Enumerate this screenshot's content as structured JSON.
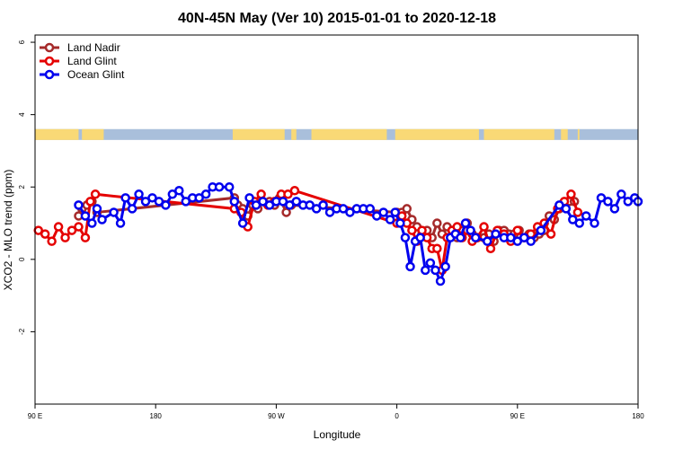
{
  "chart_data": {
    "type": "line",
    "title": "40N-45N May (Ver 10)   2015-01-01 to 2020-12-18",
    "xlabel": "Longitude",
    "ylabel": "XCO2 - MLO trend (ppm)",
    "xlim": [
      90,
      450
    ],
    "ylim": [
      -4.0,
      6.2
    ],
    "x_ticks": [
      {
        "value": 90,
        "label": "90 E"
      },
      {
        "value": 162,
        "label": "180"
      },
      {
        "value": 234,
        "label": "90 W"
      },
      {
        "value": 306,
        "label": "0"
      },
      {
        "value": 378,
        "label": "90 E"
      },
      {
        "value": 450,
        "label": "180"
      }
    ],
    "y_ticks": [
      {
        "value": -2,
        "label": "-2"
      },
      {
        "value": 0,
        "label": "0"
      },
      {
        "value": 2,
        "label": "2"
      },
      {
        "value": 4,
        "label": "4"
      },
      {
        "value": 6,
        "label": "6"
      }
    ],
    "legend": {
      "position": "top-left"
    },
    "land_ocean_band": {
      "y_range": [
        3.3,
        3.6
      ],
      "land_color": "#F9D976",
      "ocean_color": "#A9BFDB",
      "land_segments": [
        [
          90,
          116
        ],
        [
          118,
          131
        ],
        [
          208,
          239
        ],
        [
          243,
          246
        ],
        [
          255,
          300
        ],
        [
          305,
          355
        ],
        [
          358,
          400
        ],
        [
          404,
          408
        ],
        [
          414,
          415
        ]
      ]
    },
    "series": [
      {
        "name": "Land Nadir",
        "color": "#A52A2A",
        "x": [
          116,
          118,
          121,
          124,
          127,
          209,
          211,
          214,
          217,
          220,
          223,
          226,
          230,
          233,
          236,
          240,
          243,
          306,
          309,
          312,
          315,
          318,
          321,
          324,
          327,
          330,
          333,
          336,
          339,
          342,
          345,
          348,
          351,
          354,
          358,
          361,
          364,
          367,
          370,
          373,
          376,
          379,
          382,
          385,
          388,
          391,
          394,
          397,
          400,
          403,
          406,
          409,
          412
        ],
        "y": [
          1.2,
          1.4,
          1.5,
          1.6,
          1.3,
          1.7,
          1.5,
          1.4,
          1.2,
          1.5,
          1.4,
          1.6,
          1.6,
          1.5,
          1.7,
          1.3,
          1.5,
          1.3,
          1.3,
          1.4,
          1.1,
          0.9,
          0.7,
          0.8,
          0.6,
          1.0,
          0.7,
          0.9,
          0.8,
          0.6,
          0.8,
          1.0,
          0.7,
          0.6,
          0.6,
          0.7,
          0.5,
          0.8,
          0.8,
          0.7,
          0.7,
          0.8,
          0.6,
          0.7,
          0.6,
          0.7,
          0.8,
          1.2,
          1.1,
          1.4,
          1.5,
          1.6,
          1.6
        ]
      },
      {
        "name": "Land Glint",
        "color": "#E50000",
        "x": [
          92,
          96,
          100,
          104,
          108,
          112,
          116,
          120,
          123,
          126,
          209,
          213,
          217,
          221,
          225,
          229,
          233,
          237,
          241,
          245,
          306,
          309,
          312,
          315,
          318,
          321,
          324,
          327,
          330,
          333,
          336,
          339,
          342,
          345,
          348,
          351,
          354,
          358,
          362,
          366,
          370,
          374,
          378,
          382,
          386,
          390,
          394,
          398,
          402,
          406,
          410,
          414
        ],
        "y": [
          0.8,
          0.7,
          0.5,
          0.9,
          0.6,
          0.8,
          0.9,
          0.6,
          1.6,
          1.8,
          1.4,
          1.3,
          0.9,
          1.6,
          1.8,
          1.5,
          1.6,
          1.8,
          1.8,
          1.9,
          1.0,
          1.2,
          1.0,
          0.8,
          0.5,
          0.8,
          0.6,
          0.3,
          0.3,
          -0.3,
          0.6,
          0.8,
          0.9,
          0.6,
          0.8,
          0.5,
          0.6,
          0.9,
          0.3,
          0.8,
          0.7,
          0.5,
          0.8,
          0.6,
          0.7,
          0.9,
          1.0,
          0.7,
          1.4,
          1.6,
          1.8,
          1.3
        ]
      },
      {
        "name": "Ocean Glint",
        "color": "#0000EE",
        "x": [
          116,
          120,
          124,
          127,
          130,
          137,
          141,
          144,
          148,
          152,
          156,
          160,
          164,
          168,
          172,
          176,
          180,
          184,
          188,
          192,
          196,
          200,
          206,
          209,
          214,
          218,
          222,
          226,
          230,
          234,
          238,
          242,
          246,
          250,
          254,
          258,
          262,
          266,
          270,
          274,
          278,
          282,
          286,
          290,
          294,
          298,
          302,
          305,
          308,
          311,
          314,
          317,
          320,
          323,
          326,
          329,
          332,
          335,
          338,
          341,
          344,
          347,
          350,
          353,
          360,
          365,
          370,
          374,
          378,
          382,
          386,
          392,
          403,
          407,
          411,
          415,
          419,
          424,
          428,
          432,
          436,
          440,
          444,
          448,
          450
        ],
        "y": [
          1.5,
          1.2,
          1.0,
          1.4,
          1.1,
          1.3,
          1.0,
          1.7,
          1.4,
          1.8,
          1.6,
          1.7,
          1.6,
          1.5,
          1.8,
          1.9,
          1.6,
          1.7,
          1.7,
          1.8,
          2.0,
          2.0,
          2.0,
          1.6,
          1.0,
          1.7,
          1.5,
          1.6,
          1.5,
          1.6,
          1.6,
          1.5,
          1.6,
          1.5,
          1.5,
          1.4,
          1.5,
          1.3,
          1.4,
          1.4,
          1.3,
          1.4,
          1.4,
          1.4,
          1.2,
          1.3,
          1.1,
          1.3,
          1.0,
          0.6,
          -0.2,
          0.5,
          0.6,
          -0.3,
          -0.1,
          -0.3,
          -0.6,
          -0.2,
          0.6,
          0.7,
          0.6,
          1.0,
          0.8,
          0.6,
          0.5,
          0.7,
          0.6,
          0.6,
          0.5,
          0.6,
          0.5,
          0.8,
          1.5,
          1.4,
          1.1,
          1.0,
          1.2,
          1.0,
          1.7,
          1.6,
          1.4,
          1.8,
          1.6,
          1.7,
          1.6
        ]
      }
    ]
  }
}
